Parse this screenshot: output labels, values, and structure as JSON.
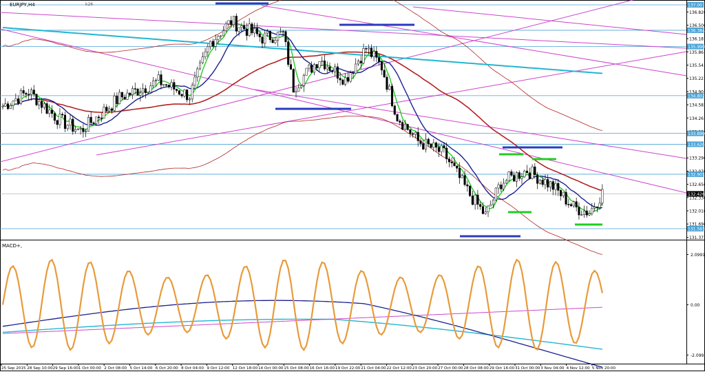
{
  "window": {
    "symbol_title": "EURJPY,H4",
    "sub_caption": "k26"
  },
  "macd": {
    "label": "MACD+,"
  },
  "colors": {
    "background": "#ffffff",
    "bull_candle": "#ffffff",
    "bear_candle": "#000000",
    "fast_ma": "#22cc22",
    "slow_ma": "#1a1f8f",
    "long_ma": "#b22222",
    "envelope": "#b22222",
    "cyan_ma": "#22b5d0",
    "trendlines": "#cc44cc",
    "support_resistance": "#2a3ac0",
    "levels": "#4aa3d6",
    "macd_osc": "#e89a3a",
    "macd_signal": "#1a1f8f",
    "macd_cyan": "#22b5d0",
    "macd_magenta": "#cc44cc"
  },
  "chart_data": [
    {
      "type": "candlestick",
      "title": "EURJPY,H4",
      "y_axis_ticks": [
        "136.826",
        "136.506",
        "136.181",
        "135.861",
        "135.541",
        "135.221",
        "134.901",
        "134.581",
        "134.261",
        "133.936",
        "133.616",
        "133.296",
        "132.976",
        "132.656",
        "132.336",
        "132.016",
        "131.696",
        "131.371"
      ],
      "level_labels": [
        "137.00",
        "136.384",
        "135.990",
        "134.802",
        "133.890",
        "133.626",
        "132.901",
        "131.583"
      ],
      "current_price_label": "132.426",
      "ylim": [
        131.35,
        137.05
      ],
      "grid": false,
      "x_tick_labels": [
        "25 Sep 2015",
        "28 Sep 10:00",
        "29 Sep 16:00",
        "1 Oct 00:00",
        "2 Oct 08:00",
        "5 Oct 14:00",
        "6 Oct 20:00",
        "8 Oct 04:00",
        "9 Oct 12:00",
        "12 Oct 18:00",
        "14 Oct 00:00",
        "15 Oct 08:00",
        "16 Oct 16:00",
        "19 Oct 22:00",
        "21 Oct 04:00",
        "22 Oct 12:00",
        "23 Oct 20:00",
        "27 Oct 00:00",
        "28 Oct 08:00",
        "29 Oct 16:00",
        "31 Oct 00:00",
        "3 Nov 04:00",
        "4 Nov 12:00",
        "5 Nov 20:00"
      ]
    },
    {
      "type": "line",
      "title": "MACD+,",
      "y_axis_ticks": [
        "2.0991",
        "0.00",
        "-2.0991"
      ],
      "ylim": [
        -2.4,
        2.6
      ]
    }
  ]
}
